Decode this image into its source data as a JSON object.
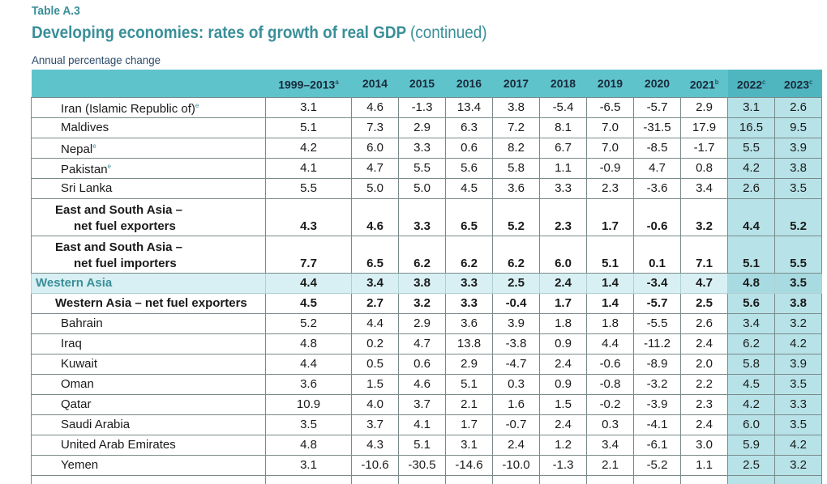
{
  "header": {
    "table_label": "Table A.3",
    "title": "Developing economies: rates of growth of real GDP",
    "title_suffix": "(continued)",
    "subtitle": "Annual percentage change"
  },
  "columns": [
    {
      "label": "1999–2013",
      "note": "a"
    },
    {
      "label": "2014",
      "note": ""
    },
    {
      "label": "2015",
      "note": ""
    },
    {
      "label": "2016",
      "note": ""
    },
    {
      "label": "2017",
      "note": ""
    },
    {
      "label": "2018",
      "note": ""
    },
    {
      "label": "2019",
      "note": ""
    },
    {
      "label": "2020",
      "note": ""
    },
    {
      "label": "2021",
      "note": "b"
    },
    {
      "label": "2022",
      "note": "c"
    },
    {
      "label": "2023",
      "note": "c"
    }
  ],
  "rows": [
    {
      "type": "country",
      "name": "Iran (Islamic Republic of)",
      "note": "e",
      "values": [
        "3.1",
        "4.6",
        "-1.3",
        "13.4",
        "3.8",
        "-5.4",
        "-6.5",
        "-5.7",
        "2.9",
        "3.1",
        "2.6"
      ]
    },
    {
      "type": "country",
      "name": "Maldives",
      "note": "",
      "values": [
        "5.1",
        "7.3",
        "2.9",
        "6.3",
        "7.2",
        "8.1",
        "7.0",
        "-31.5",
        "17.9",
        "16.5",
        "9.5"
      ]
    },
    {
      "type": "country",
      "name": "Nepal",
      "note": "e",
      "values": [
        "4.2",
        "6.0",
        "3.3",
        "0.6",
        "8.2",
        "6.7",
        "7.0",
        "-8.5",
        "-1.7",
        "5.5",
        "3.9"
      ]
    },
    {
      "type": "country",
      "name": "Pakistan",
      "note": "e",
      "values": [
        "4.1",
        "4.7",
        "5.5",
        "5.6",
        "5.8",
        "1.1",
        "-0.9",
        "4.7",
        "0.8",
        "4.2",
        "3.8"
      ]
    },
    {
      "type": "country",
      "name": "Sri Lanka",
      "note": "",
      "values": [
        "5.5",
        "5.0",
        "5.0",
        "4.5",
        "3.6",
        "3.3",
        "2.3",
        "-3.6",
        "3.4",
        "2.6",
        "3.5"
      ]
    },
    {
      "type": "aggregate",
      "name_line1": "East and South Asia –",
      "name_line2": "net fuel exporters",
      "values": [
        "4.3",
        "4.6",
        "3.3",
        "6.5",
        "5.2",
        "2.3",
        "1.7",
        "-0.6",
        "3.2",
        "4.4",
        "5.2"
      ]
    },
    {
      "type": "aggregate",
      "name_line1": "East and South Asia –",
      "name_line2": "net fuel importers",
      "values": [
        "7.7",
        "6.5",
        "6.2",
        "6.2",
        "6.2",
        "6.0",
        "5.1",
        "0.1",
        "7.1",
        "5.1",
        "5.5"
      ]
    },
    {
      "type": "region",
      "name": "Western Asia",
      "values": [
        "4.4",
        "3.4",
        "3.8",
        "3.3",
        "2.5",
        "2.4",
        "1.4",
        "-3.4",
        "4.7",
        "4.8",
        "3.5"
      ]
    },
    {
      "type": "subgroup",
      "name": "Western Asia – net fuel exporters",
      "values": [
        "4.5",
        "2.7",
        "3.2",
        "3.3",
        "-0.4",
        "1.7",
        "1.4",
        "-5.7",
        "2.5",
        "5.6",
        "3.8"
      ]
    },
    {
      "type": "country",
      "name": "Bahrain",
      "note": "",
      "values": [
        "5.2",
        "4.4",
        "2.9",
        "3.6",
        "3.9",
        "1.8",
        "1.8",
        "-5.5",
        "2.6",
        "3.4",
        "3.2"
      ]
    },
    {
      "type": "country",
      "name": "Iraq",
      "note": "",
      "values": [
        "4.8",
        "0.2",
        "4.7",
        "13.8",
        "-3.8",
        "0.9",
        "4.4",
        "-11.2",
        "2.4",
        "6.2",
        "4.2"
      ]
    },
    {
      "type": "country",
      "name": "Kuwait",
      "note": "",
      "values": [
        "4.4",
        "0.5",
        "0.6",
        "2.9",
        "-4.7",
        "2.4",
        "-0.6",
        "-8.9",
        "2.0",
        "5.8",
        "3.9"
      ]
    },
    {
      "type": "country",
      "name": "Oman",
      "note": "",
      "values": [
        "3.6",
        "1.5",
        "4.6",
        "5.1",
        "0.3",
        "0.9",
        "-0.8",
        "-3.2",
        "2.2",
        "4.5",
        "3.5"
      ]
    },
    {
      "type": "country",
      "name": "Qatar",
      "note": "",
      "values": [
        "10.9",
        "4.0",
        "3.7",
        "2.1",
        "1.6",
        "1.5",
        "-0.2",
        "-3.9",
        "2.3",
        "4.2",
        "3.3"
      ]
    },
    {
      "type": "country",
      "name": "Saudi Arabia",
      "note": "",
      "values": [
        "3.5",
        "3.7",
        "4.1",
        "1.7",
        "-0.7",
        "2.4",
        "0.3",
        "-4.1",
        "2.4",
        "6.0",
        "3.5"
      ]
    },
    {
      "type": "country",
      "name": "United Arab Emirates",
      "note": "",
      "values": [
        "4.8",
        "4.3",
        "5.1",
        "3.1",
        "2.4",
        "1.2",
        "3.4",
        "-6.1",
        "3.0",
        "5.9",
        "4.2"
      ]
    },
    {
      "type": "country",
      "name": "Yemen",
      "note": "",
      "values": [
        "3.1",
        "-10.6",
        "-30.5",
        "-14.6",
        "-10.0",
        "-1.3",
        "2.1",
        "-5.2",
        "1.1",
        "2.5",
        "3.2"
      ]
    }
  ],
  "projection_columns": [
    9,
    10
  ]
}
